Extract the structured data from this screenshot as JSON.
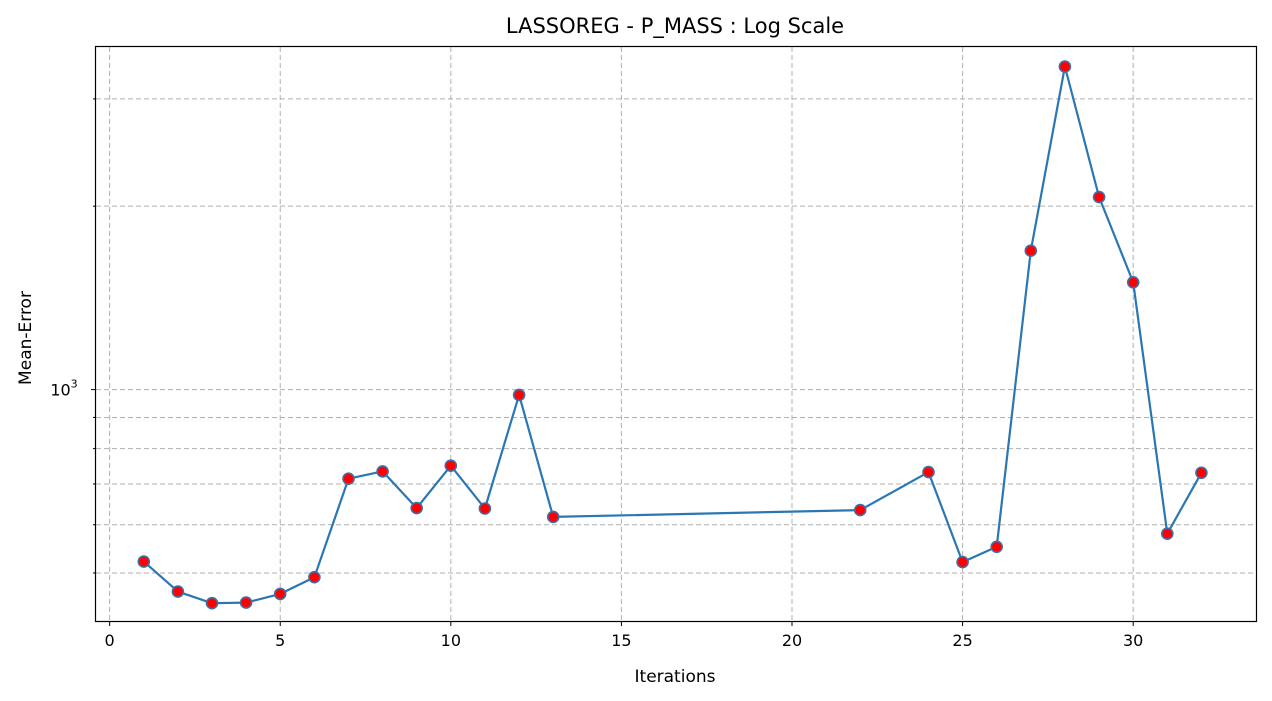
{
  "chart_data": {
    "type": "line",
    "title": "LASSOREG - P_MASS : Log Scale",
    "xlabel": "Iterations",
    "ylabel": "Mean-Error",
    "yscale": "log",
    "xlim": [
      -0.4,
      33.6
    ],
    "ylim": [
      417,
      3650
    ],
    "grid": true,
    "x_ticks": [
      0,
      5,
      10,
      15,
      20,
      25,
      30
    ],
    "y_major_ticks": [
      {
        "value": 1000,
        "base": "10",
        "exponent": "3"
      }
    ],
    "y_minor_ticks": [
      500,
      600,
      700,
      800,
      900,
      2000,
      3000
    ],
    "series": [
      {
        "line_color": "#2a77b4",
        "marker_face": "#ff0000",
        "marker_edge": "#3f6fa8",
        "x": [
          1,
          2,
          3,
          4,
          5,
          6,
          7,
          8,
          9,
          10,
          11,
          12,
          13,
          22,
          24,
          25,
          26,
          27,
          28,
          29,
          30,
          31,
          32
        ],
        "y": [
          522,
          466,
          446,
          447,
          462,
          492,
          714,
          734,
          639,
          750,
          638,
          980,
          618,
          634,
          732,
          521,
          552,
          1690,
          3390,
          2070,
          1500,
          580,
          730
        ]
      }
    ]
  }
}
